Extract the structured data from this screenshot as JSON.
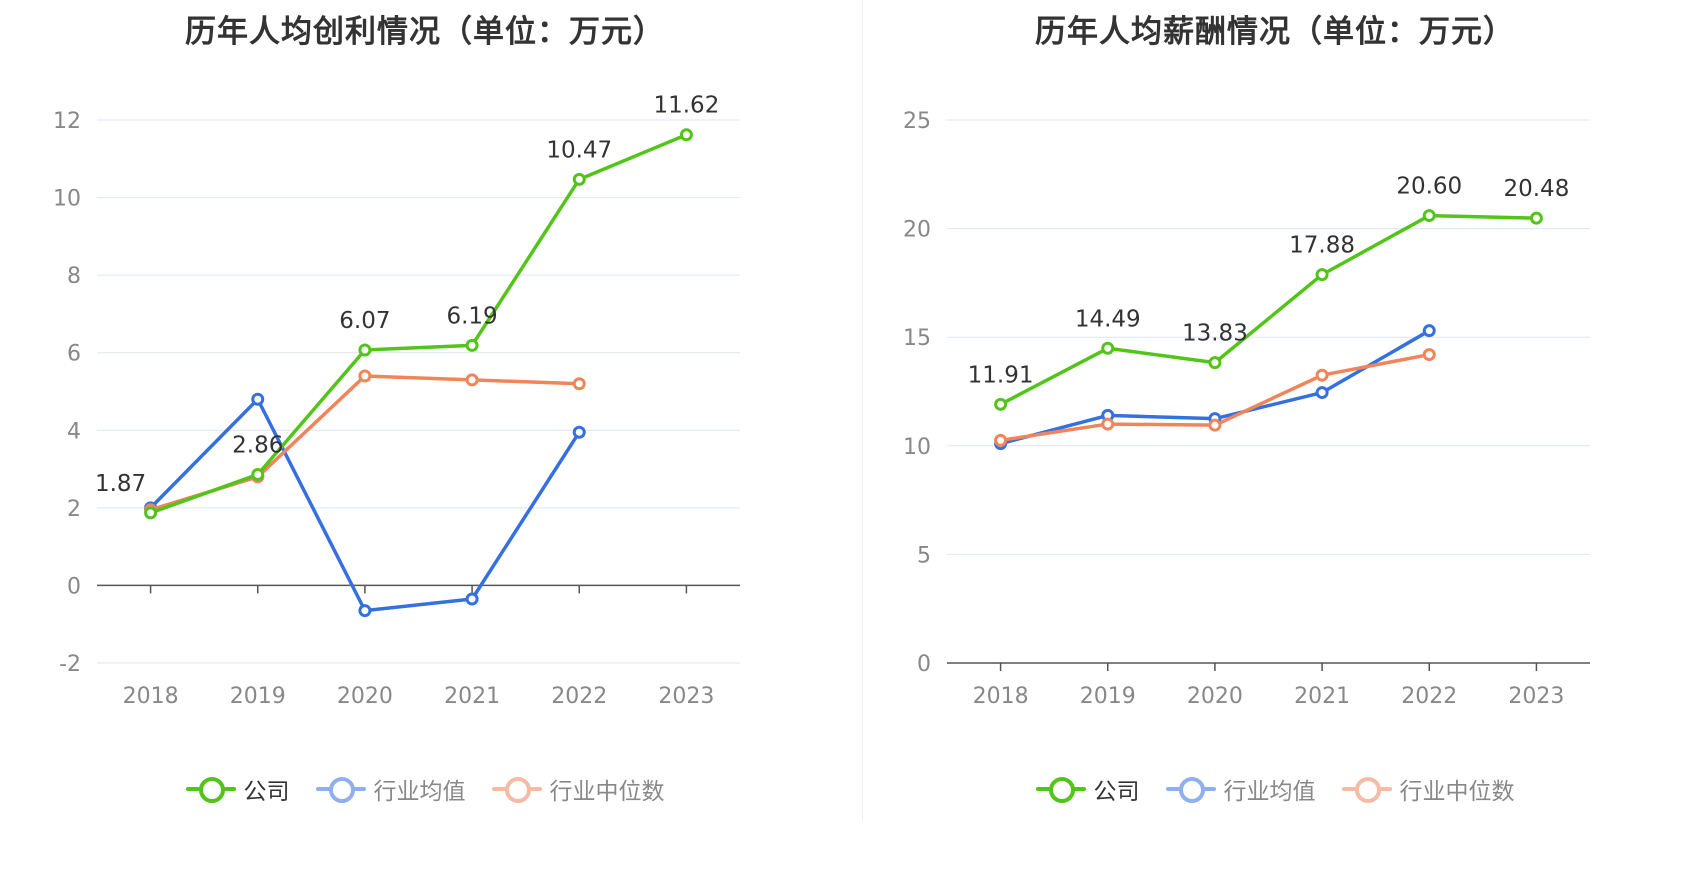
{
  "colors": {
    "company": "#52c41a",
    "avg": "#3570e0",
    "median": "#f0845a",
    "grid": "#dfe5f0",
    "axis": "#555555",
    "tick_text": "#888888",
    "label_text": "#333333"
  },
  "legend": [
    {
      "name": "公司",
      "color": "#52c41a",
      "active": true
    },
    {
      "name": "行业均值",
      "color": "#3570e0",
      "active": false
    },
    {
      "name": "行业中位数",
      "color": "#f0845a",
      "active": false
    }
  ],
  "chart_data": [
    {
      "type": "line",
      "title": "历年人均创利情况（单位：万元）",
      "categories": [
        "2018",
        "2019",
        "2020",
        "2021",
        "2022",
        "2023"
      ],
      "ylim": [
        -2,
        12
      ],
      "yticks": [
        -2,
        0,
        2,
        4,
        6,
        8,
        10,
        12
      ],
      "grid": true,
      "legend_position": "bottom",
      "series": [
        {
          "name": "公司",
          "values": [
            1.87,
            2.86,
            6.07,
            6.19,
            10.47,
            11.62
          ],
          "labels": [
            "1.87",
            "2.86",
            "6.07",
            "6.19",
            "10.47",
            "11.62"
          ]
        },
        {
          "name": "行业均值",
          "values": [
            2.0,
            4.8,
            -0.65,
            -0.35,
            3.95,
            null
          ]
        },
        {
          "name": "行业中位数",
          "values": [
            1.95,
            2.8,
            5.4,
            5.3,
            5.2,
            null
          ]
        }
      ]
    },
    {
      "type": "line",
      "title": "历年人均薪酬情况（单位：万元）",
      "categories": [
        "2018",
        "2019",
        "2020",
        "2021",
        "2022",
        "2023"
      ],
      "ylim": [
        0,
        25
      ],
      "yticks": [
        0,
        5,
        10,
        15,
        20,
        25
      ],
      "grid": true,
      "legend_position": "bottom",
      "series": [
        {
          "name": "公司",
          "values": [
            11.91,
            14.49,
            13.83,
            17.88,
            20.6,
            20.48
          ],
          "labels": [
            "11.91",
            "14.49",
            "13.83",
            "17.88",
            "20.60",
            "20.48"
          ]
        },
        {
          "name": "行业均值",
          "values": [
            10.1,
            11.4,
            11.25,
            12.45,
            15.3,
            null
          ]
        },
        {
          "name": "行业中位数",
          "values": [
            10.25,
            11.0,
            10.95,
            13.25,
            14.2,
            null
          ]
        }
      ]
    }
  ]
}
